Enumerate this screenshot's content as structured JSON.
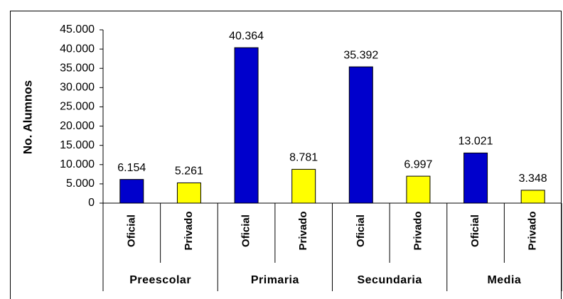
{
  "chart_data": {
    "type": "bar",
    "y_label": "No. Alumnos",
    "categories": [
      "Oficial",
      "Privado",
      "Oficial",
      "Privado",
      "Oficial",
      "Privado",
      "Oficial",
      "Privado"
    ],
    "groups": [
      "Preescolar",
      "Primaria",
      "Secundaria",
      "Media"
    ],
    "values": [
      6154,
      5261,
      40364,
      8781,
      35392,
      6997,
      13021,
      3348
    ],
    "value_labels": [
      "6.154",
      "5.261",
      "40.364",
      "8.781",
      "35.392",
      "6.997",
      "13.021",
      "3.348"
    ],
    "colors": [
      "#0000cc",
      "#ffff00",
      "#0000cc",
      "#ffff00",
      "#0000cc",
      "#ffff00",
      "#0000cc",
      "#ffff00"
    ],
    "ylim": [
      0,
      45000
    ],
    "yticks": [
      0,
      {
        "value": 5000,
        "label": "5.000"
      },
      {
        "value": 10000,
        "label": "10.000"
      },
      {
        "value": 15000,
        "label": "15.000"
      },
      {
        "value": 20000,
        "label": "20.000"
      },
      {
        "value": 25000,
        "label": "25.000"
      },
      {
        "value": 30000,
        "label": "30.000"
      },
      {
        "value": 35000,
        "label": "35.000"
      },
      {
        "value": 40000,
        "label": "40.000"
      },
      {
        "value": 45000,
        "label": "45.000"
      }
    ]
  }
}
